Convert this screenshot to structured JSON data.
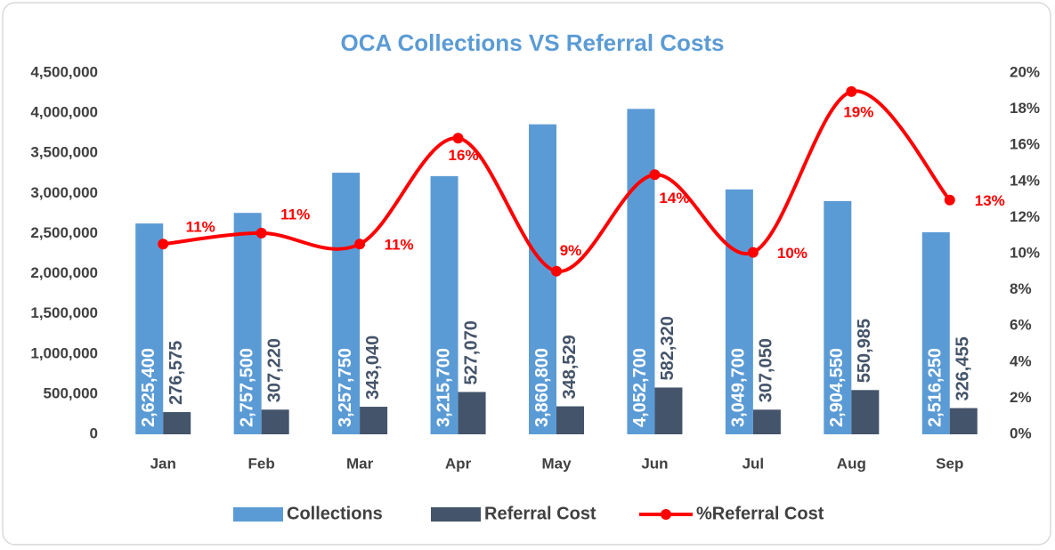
{
  "chart_data": {
    "type": "bar",
    "title": "OCA Collections VS Referral Costs",
    "categories": [
      "Jan",
      "Feb",
      "Mar",
      "Apr",
      "May",
      "Jun",
      "Jul",
      "Aug",
      "Sep"
    ],
    "series": [
      {
        "name": "Collections",
        "color": "#5b9bd5",
        "values": [
          2625400,
          2757500,
          3257750,
          3215700,
          3860800,
          4052700,
          3049700,
          2904550,
          2516250
        ],
        "value_labels": [
          "2,625,400",
          "2,757,500",
          "3,257,750",
          "3,215,700",
          "3,860,800",
          "4,052,700",
          "3,049,700",
          "2,904,550",
          "2,516,250"
        ]
      },
      {
        "name": "Referral Cost",
        "color": "#44546a",
        "values": [
          276575,
          307220,
          343040,
          527070,
          348529,
          582320,
          307050,
          550985,
          326455
        ],
        "value_labels": [
          "276,575",
          "307,220",
          "343,040",
          "527,070",
          "348,529",
          "582,320",
          "307,050",
          "550,985",
          "326,455"
        ]
      },
      {
        "name": "%Referral Cost",
        "color": "#ff0000",
        "type": "line",
        "axis": "y2",
        "values": [
          10.53,
          11.14,
          10.53,
          16.39,
          9.03,
          14.37,
          10.07,
          18.97,
          12.97
        ],
        "value_labels": [
          "11%",
          "11%",
          "11%",
          "16%",
          "9%",
          "14%",
          "10%",
          "19%",
          "13%"
        ]
      }
    ],
    "ylim": [
      0,
      4500000
    ],
    "yticks": [
      0,
      {
        "value": 500000,
        "label": "500,000"
      },
      {
        "value": 1000000,
        "label": "1,000,000"
      },
      {
        "value": 1500000,
        "label": "1,500,000"
      },
      {
        "value": 2000000,
        "label": "2,000,000"
      },
      {
        "value": 2500000,
        "label": "2,500,000"
      },
      {
        "value": 3000000,
        "label": "3,000,000"
      },
      {
        "value": 3500000,
        "label": "3,500,000"
      },
      {
        "value": 4000000,
        "label": "4,000,000"
      },
      {
        "value": 4500000,
        "label": "4,500,000"
      }
    ],
    "y2lim": [
      0,
      20
    ],
    "y2ticks": [
      {
        "value": 0,
        "label": "0%"
      },
      {
        "value": 2,
        "label": "2%"
      },
      {
        "value": 4,
        "label": "4%"
      },
      {
        "value": 6,
        "label": "6%"
      },
      {
        "value": 8,
        "label": "8%"
      },
      {
        "value": 10,
        "label": "10%"
      },
      {
        "value": 12,
        "label": "12%"
      },
      {
        "value": 14,
        "label": "14%"
      },
      {
        "value": 16,
        "label": "16%"
      },
      {
        "value": 18,
        "label": "18%"
      },
      {
        "value": 20,
        "label": "20%"
      }
    ],
    "grid": false,
    "legend": "bottom"
  }
}
